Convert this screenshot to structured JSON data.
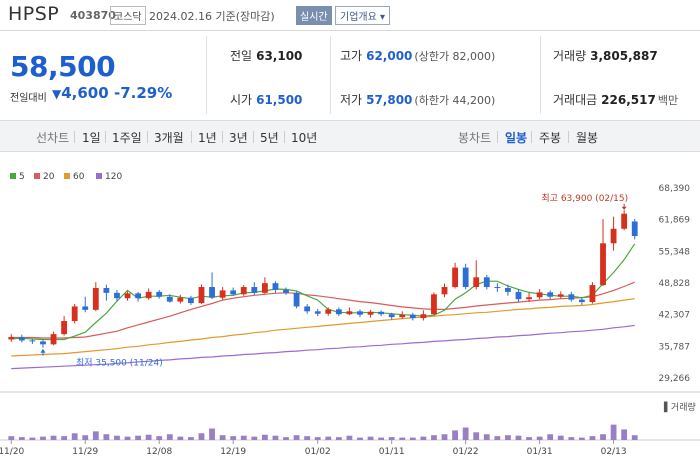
{
  "header": {
    "name": "HPSP",
    "code": "403870",
    "market": "코스닥",
    "as_of": "2024.02.16 기준(장마감)",
    "realtime_button": "실시간",
    "company_info_button": "기업개요 ▾"
  },
  "quote": {
    "price": "58,500",
    "change_label": "전일대비",
    "change": "4,600",
    "change_pct": "-7.29%",
    "prev_close_label": "전일",
    "prev_close": "63,100",
    "high_label": "고가",
    "high": "62,000",
    "upper_limit": "(상한가 82,000)",
    "volume_label": "거래량",
    "volume": "3,805,887",
    "open_label": "시가",
    "open": "61,500",
    "low_label": "저가",
    "low": "57,800",
    "lower_limit": "(하한가 44,200)",
    "amount_label": "거래대금",
    "amount": "226,517",
    "amount_unit": "백만"
  },
  "tabs": {
    "line_chart": "선차트",
    "periods": [
      "1일",
      "1주일",
      "3개월",
      "1년",
      "3년",
      "5년",
      "10년"
    ],
    "candle_chart": "봉차트",
    "candle_periods": [
      "일봉",
      "주봉",
      "월봉"
    ],
    "active": "일봉"
  },
  "colors": {
    "up": "#d7301f",
    "down": "#2e6fd6",
    "ma5": "#49a83f",
    "ma20": "#d95b5b",
    "ma60": "#e29a2b",
    "ma120": "#9b6bd1",
    "volume": "#9b7fc4"
  },
  "chart_data": {
    "type": "candlestick",
    "legend": [
      {
        "name": "5",
        "color": "#49a83f"
      },
      {
        "name": "20",
        "color": "#d95b5b"
      },
      {
        "name": "60",
        "color": "#e29a2b"
      },
      {
        "name": "120",
        "color": "#9b6bd1"
      }
    ],
    "y_ticks": [
      "68,390",
      "61,869",
      "55,348",
      "48,828",
      "42,307",
      "35,787",
      "29,266"
    ],
    "ylim": [
      29266,
      68390
    ],
    "x_ticks": [
      {
        "label": "11/20",
        "i": 0
      },
      {
        "label": "11/29",
        "i": 7
      },
      {
        "label": "12/08",
        "i": 14
      },
      {
        "label": "12/19",
        "i": 21
      },
      {
        "label": "01/02",
        "i": 29
      },
      {
        "label": "01/11",
        "i": 36
      },
      {
        "label": "01/22",
        "i": 43
      },
      {
        "label": "01/31",
        "i": 50
      },
      {
        "label": "02/13",
        "i": 57
      }
    ],
    "candles": [
      {
        "o": 37200,
        "c": 37700,
        "h": 38300,
        "l": 36700
      },
      {
        "o": 37700,
        "c": 37000,
        "h": 38200,
        "l": 36600
      },
      {
        "o": 37000,
        "c": 36800,
        "h": 37400,
        "l": 36300
      },
      {
        "o": 36800,
        "c": 36200,
        "h": 37100,
        "l": 35500
      },
      {
        "o": 36200,
        "c": 38300,
        "h": 38800,
        "l": 36000
      },
      {
        "o": 38300,
        "c": 41000,
        "h": 42000,
        "l": 38000
      },
      {
        "o": 41000,
        "c": 44000,
        "h": 44500,
        "l": 40500
      },
      {
        "o": 44000,
        "c": 43300,
        "h": 46000,
        "l": 42800
      },
      {
        "o": 43300,
        "c": 47800,
        "h": 49000,
        "l": 43000
      },
      {
        "o": 47800,
        "c": 46800,
        "h": 48500,
        "l": 45200
      },
      {
        "o": 46800,
        "c": 45700,
        "h": 47400,
        "l": 45000
      },
      {
        "o": 45700,
        "c": 46700,
        "h": 47100,
        "l": 45200
      },
      {
        "o": 46700,
        "c": 45700,
        "h": 47000,
        "l": 45000
      },
      {
        "o": 45700,
        "c": 47000,
        "h": 47700,
        "l": 45400
      },
      {
        "o": 47000,
        "c": 46000,
        "h": 47400,
        "l": 45600
      },
      {
        "o": 46000,
        "c": 45000,
        "h": 46500,
        "l": 44800
      },
      {
        "o": 45000,
        "c": 45800,
        "h": 46400,
        "l": 44600
      },
      {
        "o": 45800,
        "c": 44700,
        "h": 46200,
        "l": 44300
      },
      {
        "o": 44700,
        "c": 48000,
        "h": 48500,
        "l": 44500
      },
      {
        "o": 48000,
        "c": 45800,
        "h": 51000,
        "l": 45500
      },
      {
        "o": 45800,
        "c": 47300,
        "h": 48000,
        "l": 45400
      },
      {
        "o": 47300,
        "c": 46500,
        "h": 47900,
        "l": 46200
      },
      {
        "o": 46500,
        "c": 48000,
        "h": 48400,
        "l": 46200
      },
      {
        "o": 48000,
        "c": 46800,
        "h": 49000,
        "l": 46400
      },
      {
        "o": 46800,
        "c": 48800,
        "h": 50000,
        "l": 46600
      },
      {
        "o": 48800,
        "c": 47400,
        "h": 49200,
        "l": 46800
      },
      {
        "o": 47400,
        "c": 46800,
        "h": 47900,
        "l": 46400
      },
      {
        "o": 46800,
        "c": 44000,
        "h": 47100,
        "l": 43600
      },
      {
        "o": 44000,
        "c": 43000,
        "h": 44500,
        "l": 42500
      },
      {
        "o": 43000,
        "c": 42500,
        "h": 43500,
        "l": 42000
      },
      {
        "o": 42500,
        "c": 43400,
        "h": 43800,
        "l": 42100
      },
      {
        "o": 43400,
        "c": 42400,
        "h": 43800,
        "l": 42000
      },
      {
        "o": 42400,
        "c": 43000,
        "h": 43800,
        "l": 42200
      },
      {
        "o": 43000,
        "c": 42300,
        "h": 43400,
        "l": 41800
      },
      {
        "o": 42300,
        "c": 42900,
        "h": 43300,
        "l": 41700
      },
      {
        "o": 42900,
        "c": 42400,
        "h": 43200,
        "l": 42000
      },
      {
        "o": 42400,
        "c": 41800,
        "h": 42700,
        "l": 41300
      },
      {
        "o": 41800,
        "c": 42300,
        "h": 43000,
        "l": 41500
      },
      {
        "o": 42300,
        "c": 41600,
        "h": 42700,
        "l": 41100
      },
      {
        "o": 41600,
        "c": 42400,
        "h": 43200,
        "l": 41100
      },
      {
        "o": 42400,
        "c": 46500,
        "h": 46900,
        "l": 42200
      },
      {
        "o": 46500,
        "c": 48000,
        "h": 48700,
        "l": 45900
      },
      {
        "o": 48000,
        "c": 52000,
        "h": 53000,
        "l": 47700
      },
      {
        "o": 52000,
        "c": 48000,
        "h": 52800,
        "l": 47500
      },
      {
        "o": 48000,
        "c": 50000,
        "h": 53500,
        "l": 47500
      },
      {
        "o": 50000,
        "c": 48000,
        "h": 50500,
        "l": 47500
      },
      {
        "o": 48000,
        "c": 47800,
        "h": 48800,
        "l": 47000
      },
      {
        "o": 47800,
        "c": 47000,
        "h": 48500,
        "l": 46200
      },
      {
        "o": 47000,
        "c": 45500,
        "h": 47600,
        "l": 45000
      },
      {
        "o": 45500,
        "c": 45900,
        "h": 46800,
        "l": 44900
      },
      {
        "o": 45900,
        "c": 46900,
        "h": 47600,
        "l": 45500
      },
      {
        "o": 46900,
        "c": 46000,
        "h": 47300,
        "l": 45500
      },
      {
        "o": 46000,
        "c": 46500,
        "h": 47100,
        "l": 45600
      },
      {
        "o": 46500,
        "c": 45400,
        "h": 47000,
        "l": 45000
      },
      {
        "o": 45400,
        "c": 44900,
        "h": 45900,
        "l": 44300
      },
      {
        "o": 44900,
        "c": 48400,
        "h": 49000,
        "l": 44600
      },
      {
        "o": 48400,
        "c": 57000,
        "h": 62000,
        "l": 48200
      },
      {
        "o": 57000,
        "c": 60000,
        "h": 62500,
        "l": 55500
      },
      {
        "o": 60000,
        "c": 63100,
        "h": 63900,
        "l": 59700
      },
      {
        "o": 61500,
        "c": 58500,
        "h": 62000,
        "l": 57800
      }
    ],
    "ma5": [
      37300,
      37500,
      37300,
      37200,
      37200,
      37200,
      37900,
      38700,
      40700,
      42600,
      45100,
      47300,
      45700,
      46100,
      46100,
      46300,
      45900,
      45600,
      46100,
      45900,
      46200,
      46300,
      46800,
      46900,
      47200,
      47600,
      47500,
      47200,
      46200,
      45300,
      43400,
      42800,
      42700,
      42700,
      42800,
      42700,
      42500,
      42300,
      42200,
      42000,
      42200,
      43200,
      45500,
      46800,
      48500,
      49200,
      49200,
      48200,
      47500,
      46900,
      46600,
      46300,
      46100,
      46100,
      45800,
      46300,
      48700,
      51000,
      53600,
      56900
    ],
    "ma20": [
      37600,
      37600,
      37600,
      37500,
      37500,
      37500,
      37600,
      37700,
      38100,
      38500,
      38900,
      39600,
      40200,
      40800,
      41400,
      42000,
      42700,
      43400,
      44000,
      44600,
      45300,
      45700,
      46000,
      46300,
      46500,
      46700,
      46800,
      46700,
      46400,
      46200,
      45900,
      45600,
      45300,
      45000,
      44800,
      44500,
      44200,
      43900,
      43700,
      43500,
      43400,
      43400,
      43600,
      43800,
      44100,
      44300,
      44500,
      44700,
      44900,
      45100,
      45300,
      45400,
      45600,
      45700,
      45800,
      46000,
      46600,
      47300,
      48100,
      49000
    ],
    "ma60": [
      33800,
      33900,
      34000,
      34100,
      34200,
      34300,
      34500,
      34700,
      34900,
      35100,
      35300,
      35600,
      35800,
      36100,
      36300,
      36600,
      36800,
      37100,
      37300,
      37600,
      37800,
      38100,
      38300,
      38600,
      38800,
      39100,
      39300,
      39500,
      39700,
      39900,
      40100,
      40300,
      40500,
      40700,
      40900,
      41100,
      41300,
      41500,
      41700,
      41800,
      42000,
      42200,
      42300,
      42500,
      42700,
      42800,
      43000,
      43200,
      43400,
      43500,
      43700,
      43800,
      44000,
      44100,
      44200,
      44400,
      44700,
      45000,
      45300,
      45600
    ],
    "ma120": [
      31200,
      31300,
      31400,
      31500,
      31600,
      31700,
      31800,
      31900,
      32000,
      32100,
      32300,
      32400,
      32600,
      32700,
      32900,
      33000,
      33200,
      33300,
      33500,
      33600,
      33800,
      33900,
      34100,
      34200,
      34400,
      34500,
      34700,
      34800,
      35000,
      35100,
      35300,
      35400,
      35600,
      35700,
      35900,
      36000,
      36200,
      36300,
      36500,
      36600,
      36800,
      36900,
      37100,
      37200,
      37400,
      37500,
      37700,
      37800,
      38000,
      38100,
      38300,
      38500,
      38600,
      38800,
      38900,
      39100,
      39300,
      39600,
      39800,
      40100
    ],
    "volume": [
      8,
      6,
      5,
      7,
      9,
      8,
      14,
      10,
      18,
      12,
      9,
      7,
      9,
      11,
      8,
      12,
      7,
      6,
      14,
      24,
      10,
      8,
      9,
      7,
      11,
      9,
      6,
      10,
      8,
      6,
      7,
      6,
      9,
      5,
      7,
      5,
      6,
      5,
      5,
      7,
      10,
      12,
      20,
      26,
      16,
      12,
      8,
      10,
      9,
      6,
      7,
      12,
      9,
      6,
      5,
      8,
      12,
      32,
      22,
      10
    ],
    "volume_max": 100,
    "annotations": {
      "high": {
        "text": "최고 63,900 (02/15)",
        "value": 63900,
        "i": 58
      },
      "low": {
        "text": "최저 35,500 (11/24)",
        "value": 35500,
        "i": 3
      }
    },
    "volume_label": "거래량"
  }
}
